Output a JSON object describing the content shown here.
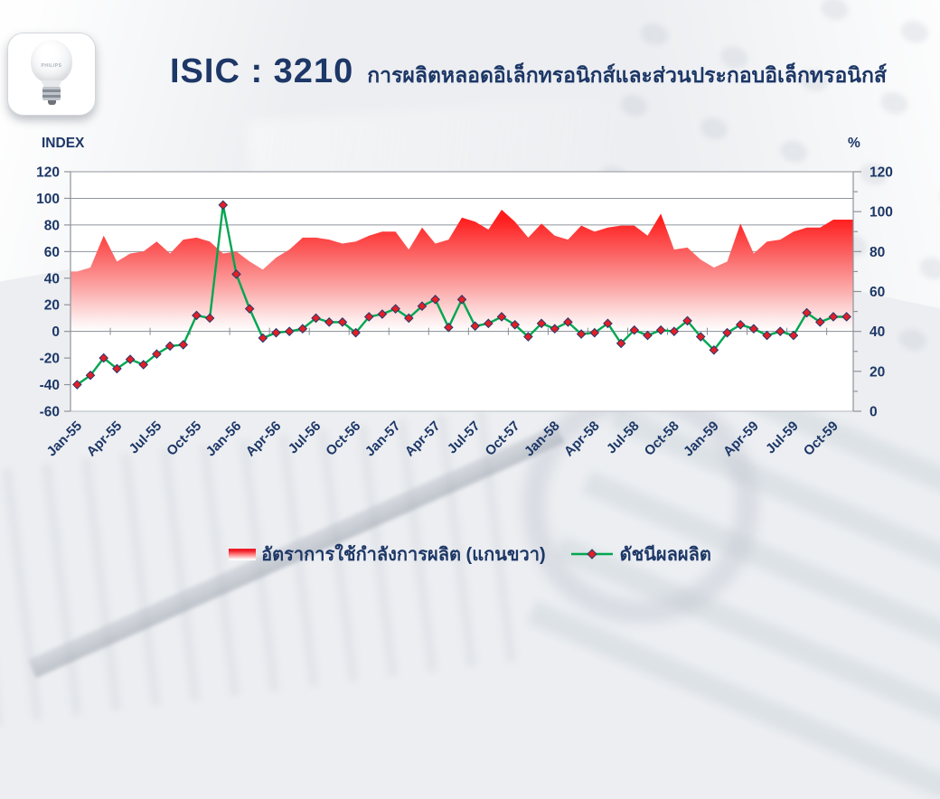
{
  "header": {
    "isic_code": "ISIC : 3210",
    "title_th": "การผลิตหลอดอิเล็กทรอนิกส์และส่วนประกอบอิเล็กทรอนิกส์",
    "bulb_brand": "PHILIPS"
  },
  "axis_labels": {
    "left": "INDEX",
    "right": "%"
  },
  "legend": {
    "area_label": "อัตราการใช้กำลังการผลิต  (แกนขวา)",
    "line_label": "ดัชนีผลผลิต"
  },
  "colors": {
    "text_navy": "#1d3767",
    "area_red_top": "#ff0808",
    "line_green": "#00a651",
    "marker_red": "#e31f26",
    "marker_border": "#26386b",
    "gridline": "#8f949b"
  },
  "chart_data": {
    "type": "area+line",
    "title": "ISIC : 3210 การผลิตหลอดอิเล็กทรอนิกส์และส่วนประกอบอิเล็กทรอนิกส์",
    "legend_position": "bottom",
    "grid": "horizontal major, left axis, only at and above zero",
    "categories": [
      "Jan-55",
      "Feb-55",
      "Mar-55",
      "Apr-55",
      "May-55",
      "Jun-55",
      "Jul-55",
      "Aug-55",
      "Sep-55",
      "Oct-55",
      "Nov-55",
      "Dec-55",
      "Jan-56",
      "Feb-56",
      "Mar-56",
      "Apr-56",
      "May-56",
      "Jun-56",
      "Jul-56",
      "Aug-56",
      "Sep-56",
      "Oct-56",
      "Nov-56",
      "Dec-56",
      "Jan-57",
      "Feb-57",
      "Mar-57",
      "Apr-57",
      "May-57",
      "Jun-57",
      "Jul-57",
      "Aug-57",
      "Sep-57",
      "Oct-57",
      "Nov-57",
      "Dec-57",
      "Jan-58",
      "Feb-58",
      "Mar-58",
      "Apr-58",
      "May-58",
      "Jun-58",
      "Jul-58",
      "Aug-58",
      "Sep-58",
      "Oct-58",
      "Nov-58",
      "Dec-58",
      "Jan-59",
      "Feb-59",
      "Mar-59",
      "Apr-59",
      "May-59",
      "Jun-59",
      "Jul-59",
      "Aug-59",
      "Sep-59",
      "Oct-59",
      "Nov-59"
    ],
    "x_tick_labels": [
      "Jan-55",
      "Apr-55",
      "Jul-55",
      "Oct-55",
      "Jan-56",
      "Apr-56",
      "Jul-56",
      "Oct-56",
      "Jan-57",
      "Apr-57",
      "Jul-57",
      "Oct-57",
      "Jan-58",
      "Apr-58",
      "Jul-58",
      "Oct-58",
      "Jan-59",
      "Apr-59",
      "Jul-59",
      "Oct-59"
    ],
    "x_tick_every": 3,
    "series": [
      {
        "name": "อัตราการใช้กำลังการผลิต (แกนขวา)",
        "type": "area",
        "axis": "right",
        "values": [
          70,
          72,
          88,
          75,
          79,
          80,
          85,
          79,
          86,
          87,
          85,
          79,
          80,
          75,
          71,
          77,
          81,
          87,
          87,
          86,
          84,
          85,
          88,
          90,
          90,
          81,
          92,
          84,
          86,
          97,
          95,
          91,
          101,
          95,
          87,
          94,
          88,
          86,
          93,
          90,
          92,
          93,
          93,
          88,
          99,
          81,
          82,
          76,
          72,
          75,
          94,
          79,
          85,
          86,
          90,
          92,
          92,
          96,
          96
        ]
      },
      {
        "name": "ดัชนีผลผลิต",
        "type": "line",
        "axis": "left",
        "marker": "diamond",
        "values": [
          -40,
          -33,
          -20,
          -28,
          -21,
          -25,
          -17,
          -11,
          -10,
          12,
          10,
          95,
          43,
          17,
          -5,
          -1,
          0,
          2,
          10,
          7,
          7,
          -1,
          11,
          13,
          17,
          10,
          19,
          24,
          3,
          24,
          4,
          6,
          11,
          5,
          -4,
          6,
          2,
          7,
          -2,
          -1,
          6,
          -9,
          1,
          -3,
          1,
          0,
          8,
          -4,
          -14,
          -1,
          5,
          2,
          -3,
          0,
          -3,
          14,
          7,
          11,
          11
        ]
      }
    ],
    "left_axis": {
      "label": "INDEX",
      "min": -60,
      "max": 120,
      "step": 20
    },
    "right_axis": {
      "label": "%",
      "min": 0,
      "max": 120,
      "step": 20,
      "minor_step": 10
    }
  }
}
